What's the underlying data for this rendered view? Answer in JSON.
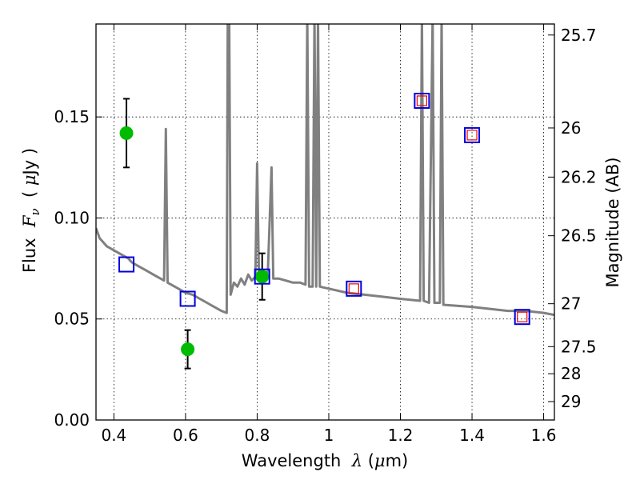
{
  "chart_data": {
    "type": "scatter",
    "xlabel": {
      "prefix": "Wavelength  ",
      "symbol": "λ",
      "unit_open": " (",
      "unit_mu": "μ",
      "unit_close": "m)"
    },
    "ylabel": {
      "prefix": "Flux  ",
      "symbol": "F",
      "subscript": "ν",
      "unit_open": "  ( ",
      "unit_mu": "μ",
      "unit_close": "Jy )"
    },
    "y2label": "Magnitude (AB)",
    "xlim": [
      0.35,
      1.63
    ],
    "ylim": [
      0.0,
      0.196
    ],
    "grid": true,
    "x_ticks": [
      {
        "value": 0.4,
        "label": "0.4"
      },
      {
        "value": 0.6,
        "label": "0.6"
      },
      {
        "value": 0.8,
        "label": "0.8"
      },
      {
        "value": 1.0,
        "label": "1"
      },
      {
        "value": 1.2,
        "label": "1.2"
      },
      {
        "value": 1.4,
        "label": "1.4"
      },
      {
        "value": 1.6,
        "label": "1.6"
      }
    ],
    "y_ticks": [
      {
        "value": 0.0,
        "label": "0.00"
      },
      {
        "value": 0.05,
        "label": "0.05"
      },
      {
        "value": 0.1,
        "label": "0.10"
      },
      {
        "value": 0.15,
        "label": "0.15"
      }
    ],
    "y2_ticks": [
      {
        "value": 25.7,
        "label": "25.7"
      },
      {
        "value": 26.0,
        "label": "26"
      },
      {
        "value": 26.2,
        "label": "26.2"
      },
      {
        "value": 26.5,
        "label": "26.5"
      },
      {
        "value": 27.0,
        "label": "27"
      },
      {
        "value": 27.5,
        "label": "27.5"
      },
      {
        "value": 28.0,
        "label": "28"
      },
      {
        "value": 29.0,
        "label": "29"
      }
    ],
    "series": [
      {
        "name": "model-spectrum",
        "kind": "line",
        "color": "#808080",
        "points": [
          [
            0.35,
            0.095
          ],
          [
            0.36,
            0.09
          ],
          [
            0.37,
            0.088
          ],
          [
            0.38,
            0.086
          ],
          [
            0.39,
            0.085
          ],
          [
            0.4,
            0.084
          ],
          [
            0.41,
            0.083
          ],
          [
            0.42,
            0.082
          ],
          [
            0.43,
            0.081
          ],
          [
            0.44,
            0.08
          ],
          [
            0.45,
            0.078
          ],
          [
            0.46,
            0.077
          ],
          [
            0.47,
            0.076
          ],
          [
            0.48,
            0.075
          ],
          [
            0.49,
            0.074
          ],
          [
            0.5,
            0.073
          ],
          [
            0.51,
            0.072
          ],
          [
            0.52,
            0.071
          ],
          [
            0.53,
            0.07
          ],
          [
            0.54,
            0.069
          ],
          [
            0.545,
            0.144
          ],
          [
            0.55,
            0.068
          ],
          [
            0.56,
            0.067
          ],
          [
            0.57,
            0.066
          ],
          [
            0.58,
            0.065
          ],
          [
            0.59,
            0.064
          ],
          [
            0.6,
            0.063
          ],
          [
            0.62,
            0.062
          ],
          [
            0.64,
            0.06
          ],
          [
            0.66,
            0.058
          ],
          [
            0.68,
            0.056
          ],
          [
            0.7,
            0.054
          ],
          [
            0.715,
            0.053
          ],
          [
            0.718,
            0.2
          ],
          [
            0.722,
            0.2
          ],
          [
            0.726,
            0.062
          ],
          [
            0.735,
            0.068
          ],
          [
            0.745,
            0.066
          ],
          [
            0.755,
            0.07
          ],
          [
            0.765,
            0.067
          ],
          [
            0.775,
            0.072
          ],
          [
            0.785,
            0.069
          ],
          [
            0.795,
            0.071
          ],
          [
            0.8,
            0.127
          ],
          [
            0.805,
            0.07
          ],
          [
            0.815,
            0.072
          ],
          [
            0.825,
            0.071
          ],
          [
            0.83,
            0.074
          ],
          [
            0.84,
            0.125
          ],
          [
            0.845,
            0.07
          ],
          [
            0.86,
            0.07
          ],
          [
            0.88,
            0.069
          ],
          [
            0.9,
            0.068
          ],
          [
            0.92,
            0.068
          ],
          [
            0.935,
            0.067
          ],
          [
            0.94,
            0.2
          ],
          [
            0.945,
            0.066
          ],
          [
            0.955,
            0.066
          ],
          [
            0.96,
            0.2
          ],
          [
            0.965,
            0.066
          ],
          [
            0.97,
            0.2
          ],
          [
            0.975,
            0.066
          ],
          [
            1.0,
            0.065
          ],
          [
            1.05,
            0.063
          ],
          [
            1.1,
            0.062
          ],
          [
            1.15,
            0.061
          ],
          [
            1.2,
            0.06
          ],
          [
            1.255,
            0.059
          ],
          [
            1.26,
            0.2
          ],
          [
            1.265,
            0.059
          ],
          [
            1.28,
            0.058
          ],
          [
            1.29,
            0.2
          ],
          [
            1.295,
            0.058
          ],
          [
            1.31,
            0.058
          ],
          [
            1.315,
            0.2
          ],
          [
            1.32,
            0.057
          ],
          [
            1.4,
            0.056
          ],
          [
            1.45,
            0.055
          ],
          [
            1.5,
            0.054
          ],
          [
            1.55,
            0.054
          ],
          [
            1.6,
            0.053
          ],
          [
            1.63,
            0.052
          ]
        ]
      },
      {
        "name": "observed-photometry",
        "kind": "points-with-error",
        "color": "#00bb00",
        "points": [
          {
            "x": 0.435,
            "y": 0.142,
            "err": 0.017
          },
          {
            "x": 0.606,
            "y": 0.035,
            "err": 0.0095
          },
          {
            "x": 0.814,
            "y": 0.071,
            "err": 0.0115
          }
        ]
      },
      {
        "name": "model-band-flux",
        "kind": "open-squares",
        "color": "#0000dd",
        "points": [
          {
            "x": 0.435,
            "y": 0.077
          },
          {
            "x": 0.606,
            "y": 0.06
          },
          {
            "x": 0.814,
            "y": 0.071
          },
          {
            "x": 1.07,
            "y": 0.065
          },
          {
            "x": 1.26,
            "y": 0.158
          },
          {
            "x": 1.4,
            "y": 0.141
          },
          {
            "x": 1.54,
            "y": 0.051
          }
        ]
      },
      {
        "name": "alternative-band-flux",
        "kind": "small-open-squares",
        "color": "#ee0000",
        "points": [
          {
            "x": 1.07,
            "y": 0.065
          },
          {
            "x": 1.26,
            "y": 0.158
          },
          {
            "x": 1.4,
            "y": 0.141
          },
          {
            "x": 1.54,
            "y": 0.051
          }
        ]
      }
    ]
  }
}
